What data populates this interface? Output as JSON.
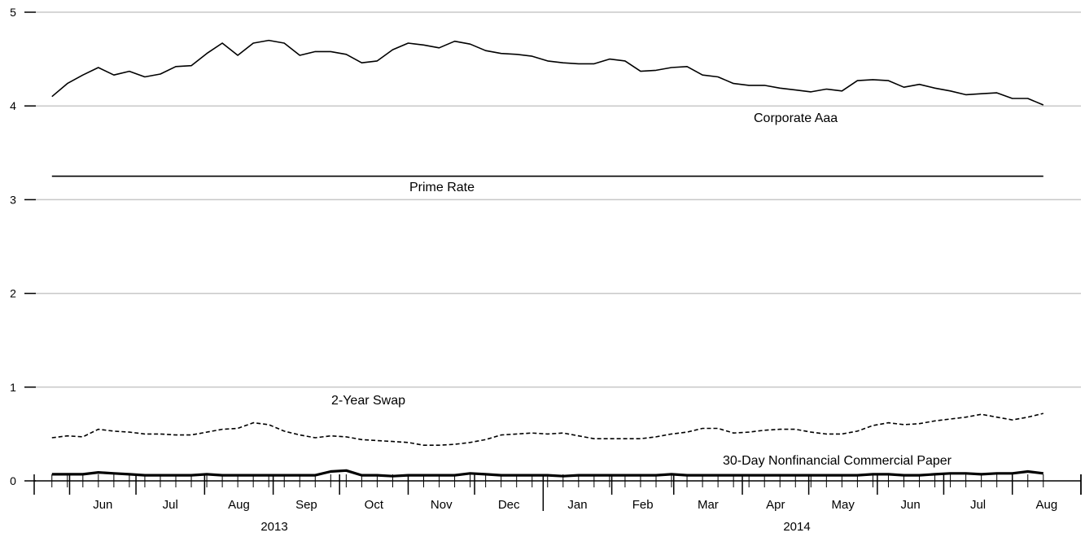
{
  "chart_data": {
    "type": "line",
    "title": "",
    "xlabel": "",
    "ylabel": "",
    "ylim": [
      0,
      5
    ],
    "yticks": [
      "0",
      "1",
      "2",
      "3",
      "4",
      "5"
    ],
    "grid": true,
    "x_start": "2013-05-24",
    "x_step_days": 7,
    "month_ticks": [
      "Jun",
      "Jul",
      "Aug",
      "Sep",
      "Oct",
      "Nov",
      "Dec",
      "Jan",
      "Feb",
      "Mar",
      "Apr",
      "May",
      "Jun",
      "Jul",
      "Aug"
    ],
    "years": [
      "2013",
      "2014"
    ],
    "series": [
      {
        "name": "Corporate Aaa",
        "style": "solid",
        "values": [
          4.1,
          4.24,
          4.33,
          4.41,
          4.33,
          4.37,
          4.31,
          4.34,
          4.42,
          4.43,
          4.56,
          4.67,
          4.54,
          4.67,
          4.7,
          4.67,
          4.54,
          4.58,
          4.58,
          4.55,
          4.46,
          4.48,
          4.6,
          4.67,
          4.65,
          4.62,
          4.69,
          4.66,
          4.59,
          4.56,
          4.55,
          4.53,
          4.48,
          4.46,
          4.45,
          4.45,
          4.5,
          4.48,
          4.37,
          4.38,
          4.41,
          4.42,
          4.33,
          4.31,
          4.24,
          4.22,
          4.22,
          4.19,
          4.17,
          4.15,
          4.18,
          4.16,
          4.27,
          4.28,
          4.27,
          4.2,
          4.23,
          4.19,
          4.16,
          4.12,
          4.13,
          4.14,
          4.08,
          4.08,
          4.01
        ]
      },
      {
        "name": "Prime Rate",
        "style": "solid",
        "values": [
          3.25,
          3.25,
          3.25,
          3.25,
          3.25,
          3.25,
          3.25,
          3.25,
          3.25,
          3.25,
          3.25,
          3.25,
          3.25,
          3.25,
          3.25,
          3.25,
          3.25,
          3.25,
          3.25,
          3.25,
          3.25,
          3.25,
          3.25,
          3.25,
          3.25,
          3.25,
          3.25,
          3.25,
          3.25,
          3.25,
          3.25,
          3.25,
          3.25,
          3.25,
          3.25,
          3.25,
          3.25,
          3.25,
          3.25,
          3.25,
          3.25,
          3.25,
          3.25,
          3.25,
          3.25,
          3.25,
          3.25,
          3.25,
          3.25,
          3.25,
          3.25,
          3.25,
          3.25,
          3.25,
          3.25,
          3.25,
          3.25,
          3.25,
          3.25,
          3.25,
          3.25,
          3.25,
          3.25,
          3.25,
          3.25
        ]
      },
      {
        "name": "2-Year Swap",
        "style": "dashed",
        "values": [
          0.46,
          0.48,
          0.47,
          0.55,
          0.53,
          0.52,
          0.5,
          0.5,
          0.49,
          0.49,
          0.52,
          0.55,
          0.56,
          0.62,
          0.6,
          0.53,
          0.49,
          0.46,
          0.48,
          0.47,
          0.44,
          0.43,
          0.42,
          0.41,
          0.38,
          0.38,
          0.39,
          0.41,
          0.44,
          0.49,
          0.5,
          0.51,
          0.5,
          0.51,
          0.48,
          0.45,
          0.45,
          0.45,
          0.45,
          0.47,
          0.5,
          0.52,
          0.56,
          0.56,
          0.51,
          0.52,
          0.54,
          0.55,
          0.55,
          0.52,
          0.5,
          0.5,
          0.53,
          0.59,
          0.62,
          0.6,
          0.61,
          0.64,
          0.66,
          0.68,
          0.71,
          0.68,
          0.65,
          0.68,
          0.72
        ]
      },
      {
        "name": "30-Day Nonfinancial Commercial Paper",
        "style": "thick",
        "values": [
          0.07,
          0.07,
          0.07,
          0.09,
          0.08,
          0.07,
          0.06,
          0.06,
          0.06,
          0.06,
          0.07,
          0.06,
          0.06,
          0.06,
          0.06,
          0.06,
          0.06,
          0.06,
          0.1,
          0.11,
          0.06,
          0.06,
          0.05,
          0.06,
          0.06,
          0.06,
          0.06,
          0.08,
          0.07,
          0.06,
          0.06,
          0.06,
          0.06,
          0.05,
          0.06,
          0.06,
          0.06,
          0.06,
          0.06,
          0.06,
          0.07,
          0.06,
          0.06,
          0.06,
          0.06,
          0.06,
          0.06,
          0.06,
          0.06,
          0.06,
          0.06,
          0.06,
          0.06,
          0.07,
          0.07,
          0.06,
          0.06,
          0.07,
          0.08,
          0.08,
          0.07,
          0.08,
          0.08,
          0.1,
          0.08
        ]
      }
    ],
    "labels": {
      "corporate": "Corporate Aaa",
      "prime": "Prime Rate",
      "swap": "2-Year Swap",
      "paper": "30-Day Nonfinancial Commercial Paper"
    }
  }
}
